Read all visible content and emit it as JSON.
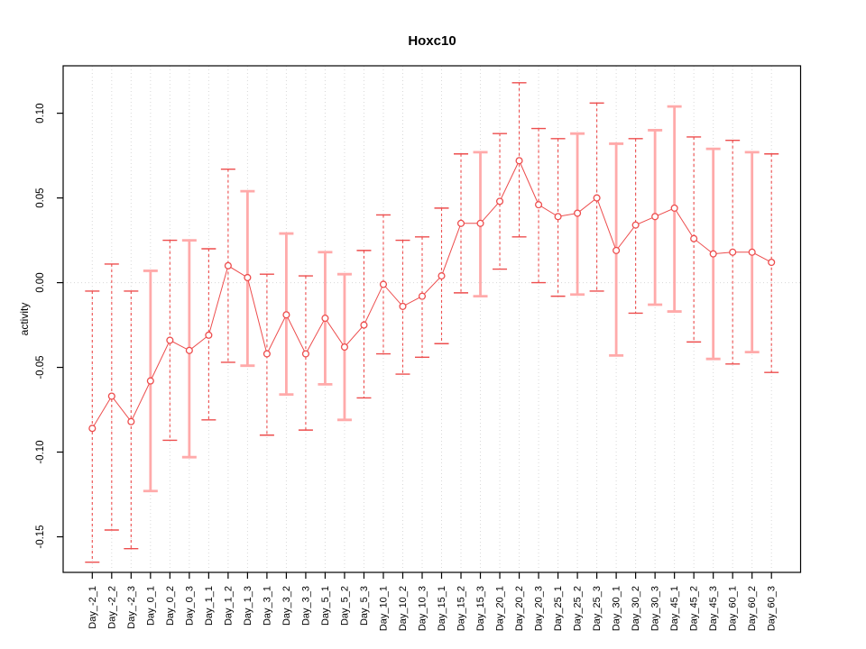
{
  "title": "Hoxc10",
  "chart_data": {
    "type": "scatter",
    "title": "Hoxc10",
    "xlabel": "",
    "ylabel": "activity",
    "legend": "none",
    "grid": "dotted vertical gridline at every category; dotted horizontal line at y=0",
    "marker": "open-circle",
    "connected": true,
    "error_bars": true,
    "categories": [
      "Day_-2_1",
      "Day_-2_2",
      "Day_-2_3",
      "Day_0_1",
      "Day_0_2",
      "Day_0_3",
      "Day_1_1",
      "Day_1_2",
      "Day_1_3",
      "Day_3_1",
      "Day_3_2",
      "Day_3_3",
      "Day_5_1",
      "Day_5_2",
      "Day_5_3",
      "Day_10_1",
      "Day_10_2",
      "Day_10_3",
      "Day_15_1",
      "Day_15_2",
      "Day_15_3",
      "Day_20_1",
      "Day_20_2",
      "Day_20_3",
      "Day_25_1",
      "Day_25_2",
      "Day_25_3",
      "Day_30_1",
      "Day_30_2",
      "Day_30_3",
      "Day_45_1",
      "Day_45_2",
      "Day_45_3",
      "Day_60_1",
      "Day_60_2",
      "Day_60_3"
    ],
    "series": [
      {
        "name": "activity",
        "values": [
          -0.086,
          -0.067,
          -0.082,
          -0.058,
          -0.034,
          -0.04,
          -0.031,
          0.01,
          0.003,
          -0.042,
          -0.019,
          -0.042,
          -0.021,
          -0.038,
          -0.025,
          -0.001,
          -0.014,
          -0.008,
          0.004,
          0.035,
          0.035,
          0.048,
          0.072,
          0.046,
          0.039,
          0.041,
          0.05,
          0.019,
          0.034,
          0.039,
          0.044,
          0.026,
          0.017,
          0.018,
          0.018,
          0.012
        ],
        "error_high": [
          -0.005,
          0.011,
          -0.005,
          0.007,
          0.025,
          0.025,
          0.02,
          0.067,
          0.054,
          0.005,
          0.029,
          0.004,
          0.018,
          0.005,
          0.019,
          0.04,
          0.025,
          0.027,
          0.044,
          0.076,
          0.077,
          0.088,
          0.118,
          0.091,
          0.085,
          0.088,
          0.106,
          0.082,
          0.085,
          0.09,
          0.104,
          0.086,
          0.079,
          0.084,
          0.077,
          0.076
        ],
        "error_low": [
          -0.165,
          -0.146,
          -0.157,
          -0.123,
          -0.093,
          -0.103,
          -0.081,
          -0.047,
          -0.049,
          -0.09,
          -0.066,
          -0.087,
          -0.06,
          -0.081,
          -0.068,
          -0.042,
          -0.054,
          -0.044,
          -0.036,
          -0.006,
          -0.008,
          0.008,
          0.027,
          0.0,
          -0.008,
          -0.007,
          -0.005,
          -0.043,
          -0.018,
          -0.013,
          -0.017,
          -0.035,
          -0.045,
          -0.048,
          -0.041,
          -0.053
        ],
        "bar_styles": [
          "dark",
          "dark",
          "dark",
          "light",
          "dark",
          "light",
          "dark",
          "dark",
          "light",
          "dark",
          "light",
          "dark",
          "light",
          "light",
          "dark",
          "dark",
          "dark",
          "dark",
          "dark",
          "dark",
          "light",
          "dark",
          "dark",
          "dark",
          "dark",
          "light",
          "dark",
          "light",
          "dark",
          "light",
          "light",
          "dark",
          "light",
          "dark",
          "light",
          "dark"
        ]
      }
    ],
    "y_ticks": [
      -0.15,
      -0.1,
      -0.05,
      0.0,
      0.05,
      0.1
    ],
    "y_tick_labels": [
      "-0.15",
      "-0.10",
      "-0.05",
      "0.00",
      "0.05",
      "0.10"
    ],
    "ylim": [
      -0.171,
      0.128
    ],
    "colors": {
      "point": "#ed4d4d",
      "line": "#ed4d4d",
      "bar_dark": "#ed4d4d",
      "bar_light": "#ffaaaa",
      "grid": "#d8d8d8",
      "axis": "#000000",
      "background": "#ffffff"
    }
  }
}
